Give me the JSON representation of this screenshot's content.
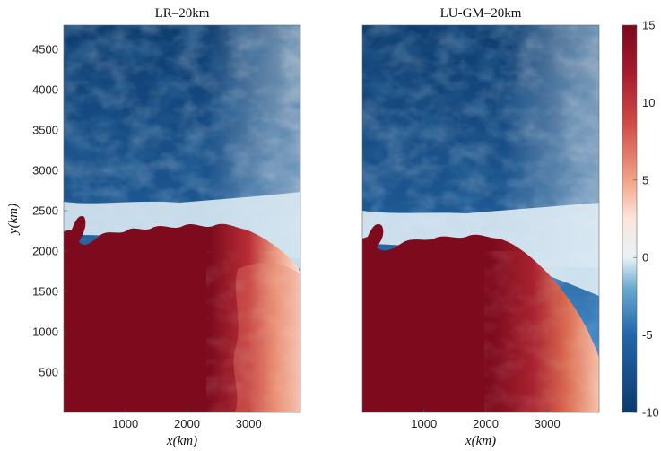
{
  "chart_data": {
    "type": "heatmap",
    "panels": [
      {
        "title": "LR–20km",
        "xlabel": "x(km)",
        "ylabel": "y(km)",
        "xlim": [
          0,
          3840
        ],
        "ylim": [
          0,
          4800
        ],
        "xticks": [
          "1000",
          "2000",
          "3000"
        ],
        "yticks": [
          "500",
          "1000",
          "1500",
          "2000",
          "2500",
          "3000",
          "3500",
          "4000",
          "4500"
        ],
        "front_y_west": 2250,
        "front_y_mid": 2150,
        "warm_core_east_edge_x": 2700
      },
      {
        "title": "LU-GM–20km",
        "xlabel": "x(km)",
        "ylabel": "",
        "xlim": [
          0,
          3840
        ],
        "ylim": [
          0,
          4800
        ],
        "xticks": [
          "1000",
          "2000",
          "3000"
        ],
        "yticks": [],
        "front_y_west": 2150,
        "front_y_mid": 2050,
        "warm_core_east_edge_x": 2400
      }
    ],
    "colorbar": {
      "min": -10,
      "max": 15,
      "ticks": [
        "15",
        "10",
        "5",
        "0",
        "-5",
        "-10"
      ],
      "colormap": [
        "#0b3a6c",
        "#2166ac",
        "#67a9cf",
        "#d1e5f0",
        "#f7f7f7",
        "#fddbc7",
        "#ef8a62",
        "#b2182b",
        "#7a0a1c"
      ]
    },
    "colors": {
      "deep_blue": "#0e3d70",
      "mid_blue": "#3b7fbd",
      "light_blue": "#cfe3ef",
      "white": "#f5f5f5",
      "light_red": "#f4b79a",
      "mid_red": "#c33a3a",
      "deep_red": "#7d0b1d"
    }
  }
}
